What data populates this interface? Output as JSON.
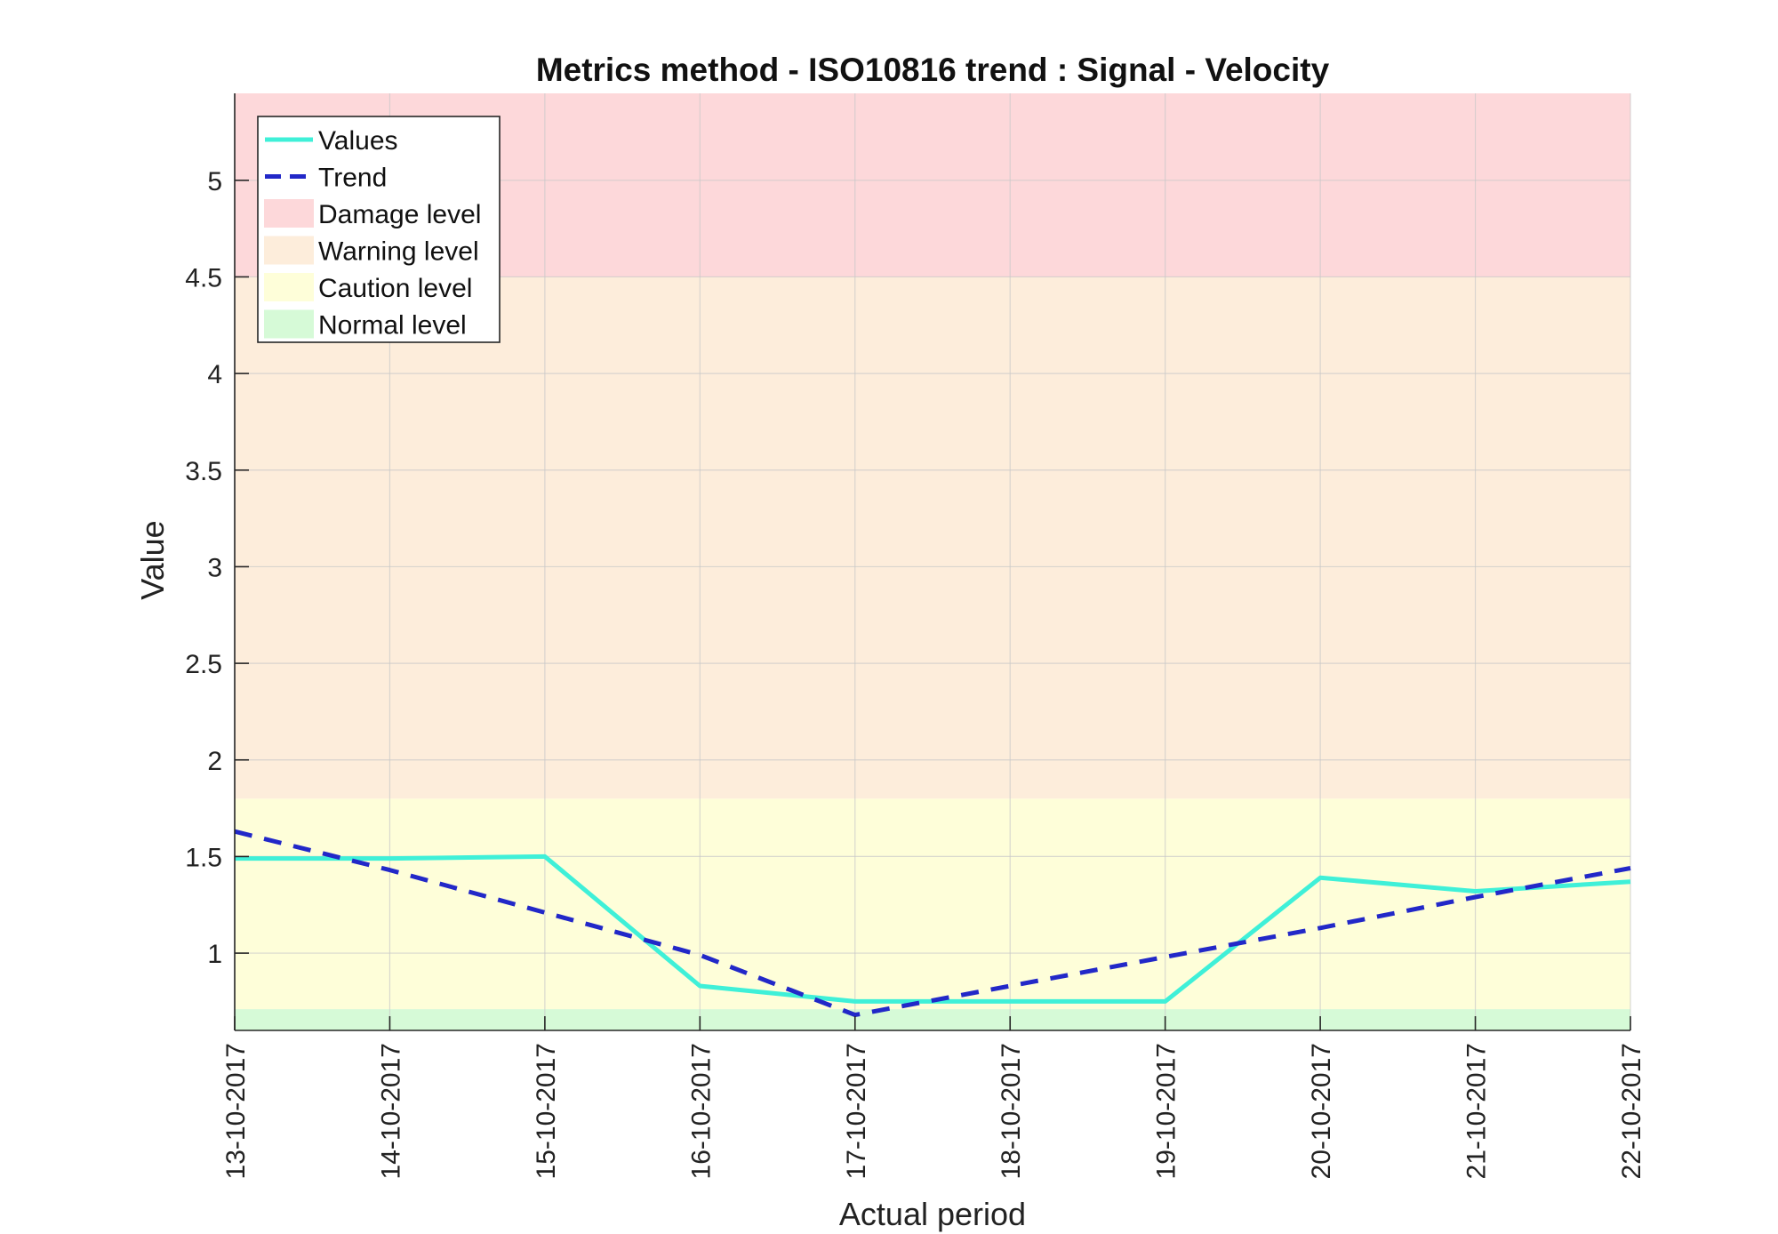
{
  "chart_data": {
    "type": "line",
    "title": "Metrics method - ISO10816 trend : Signal - Velocity",
    "xlabel": "Actual period",
    "ylabel": "Value",
    "categories": [
      "13-10-2017",
      "14-10-2017",
      "15-10-2017",
      "16-10-2017",
      "17-10-2017",
      "18-10-2017",
      "19-10-2017",
      "20-10-2017",
      "21-10-2017",
      "22-10-2017"
    ],
    "ylim": [
      0.6,
      5.45
    ],
    "yticks": [
      {
        "value": 1,
        "label": "1"
      },
      {
        "value": 1.5,
        "label": "1.5"
      },
      {
        "value": 2,
        "label": "2"
      },
      {
        "value": 2.5,
        "label": "2.5"
      },
      {
        "value": 3,
        "label": "3"
      },
      {
        "value": 3.5,
        "label": "3.5"
      },
      {
        "value": 4,
        "label": "4"
      },
      {
        "value": 4.5,
        "label": "4.5"
      },
      {
        "value": 5,
        "label": "5"
      }
    ],
    "grid": true,
    "bands": [
      {
        "name": "Normal level",
        "from": 0.6,
        "to": 0.71,
        "color": "#d6fad7"
      },
      {
        "name": "Caution level",
        "from": 0.71,
        "to": 1.8,
        "color": "#fefed9"
      },
      {
        "name": "Warning level",
        "from": 1.8,
        "to": 4.5,
        "color": "#fdeddb"
      },
      {
        "name": "Damage level",
        "from": 4.5,
        "to": 5.45,
        "color": "#fdd8da"
      }
    ],
    "series": [
      {
        "name": "Values",
        "style": "solid",
        "color": "#3ff0d8",
        "values": [
          1.49,
          1.49,
          1.5,
          0.83,
          0.75,
          0.75,
          0.75,
          1.39,
          1.32,
          1.37
        ]
      },
      {
        "name": "Trend",
        "style": "dashed",
        "color": "#2228c8",
        "values": [
          1.63,
          1.43,
          1.21,
          0.99,
          0.68,
          0.83,
          0.98,
          1.13,
          1.29,
          1.44
        ]
      }
    ],
    "legend": {
      "position": "top-left",
      "entries": [
        {
          "label": "Values",
          "kind": "line",
          "style": "solid",
          "color": "#3ff0d8"
        },
        {
          "label": "Trend",
          "kind": "line",
          "style": "dashed",
          "color": "#2228c8"
        },
        {
          "label": "Damage level",
          "kind": "patch",
          "color": "#fdd8da"
        },
        {
          "label": "Warning level",
          "kind": "patch",
          "color": "#fdeddb"
        },
        {
          "label": "Caution level",
          "kind": "patch",
          "color": "#fefed9"
        },
        {
          "label": "Normal level",
          "kind": "patch",
          "color": "#d6fad7"
        }
      ]
    }
  }
}
